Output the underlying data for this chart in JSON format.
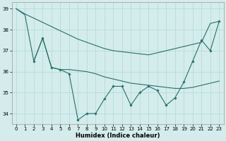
{
  "xlabel": "Humidex (Indice chaleur)",
  "xlim": [
    -0.5,
    23.5
  ],
  "ylim": [
    33.5,
    39.3
  ],
  "yticks": [
    34,
    35,
    36,
    37,
    38,
    39
  ],
  "xticks": [
    0,
    1,
    2,
    3,
    4,
    5,
    6,
    7,
    8,
    9,
    10,
    11,
    12,
    13,
    14,
    15,
    16,
    17,
    18,
    19,
    20,
    21,
    22,
    23
  ],
  "bg_color": "#d4ecec",
  "grid_color": "#b0d8d8",
  "line_color": "#2a6e6b",
  "line1_x": [
    0,
    1,
    2,
    3,
    4,
    5,
    6,
    7,
    8,
    9,
    10,
    11,
    12,
    13,
    14,
    15,
    16,
    17,
    18,
    19,
    20,
    21,
    22,
    23
  ],
  "line1_y": [
    39.0,
    38.75,
    38.55,
    38.35,
    38.15,
    37.95,
    37.75,
    37.55,
    37.4,
    37.25,
    37.1,
    37.0,
    36.95,
    36.9,
    36.85,
    36.8,
    36.9,
    37.0,
    37.1,
    37.2,
    37.3,
    37.4,
    38.3,
    38.4
  ],
  "line1_has_markers": false,
  "line2_x": [
    0,
    1,
    2,
    3,
    4,
    5,
    6,
    7,
    8,
    9,
    10,
    11,
    12,
    13,
    14,
    15,
    16,
    17,
    18,
    19,
    20,
    21,
    22,
    23
  ],
  "line2_y": [
    39.0,
    38.7,
    36.5,
    37.6,
    36.2,
    36.1,
    36.1,
    36.05,
    36.0,
    35.9,
    35.75,
    35.65,
    35.55,
    35.45,
    35.4,
    35.35,
    35.3,
    35.25,
    35.2,
    35.2,
    35.25,
    35.35,
    35.45,
    35.55
  ],
  "line2_has_markers": false,
  "line3_x": [
    2,
    3,
    4,
    5,
    6,
    7,
    8,
    9,
    10,
    11,
    12,
    13,
    14,
    15,
    16,
    17,
    18,
    19,
    20,
    21,
    22,
    23
  ],
  "line3_y": [
    36.5,
    37.6,
    36.2,
    36.1,
    35.9,
    33.7,
    34.0,
    34.0,
    34.7,
    35.3,
    35.3,
    34.4,
    35.0,
    35.3,
    35.1,
    34.4,
    34.75,
    35.5,
    36.5,
    37.5,
    37.0,
    38.4
  ],
  "line3_has_markers": true
}
